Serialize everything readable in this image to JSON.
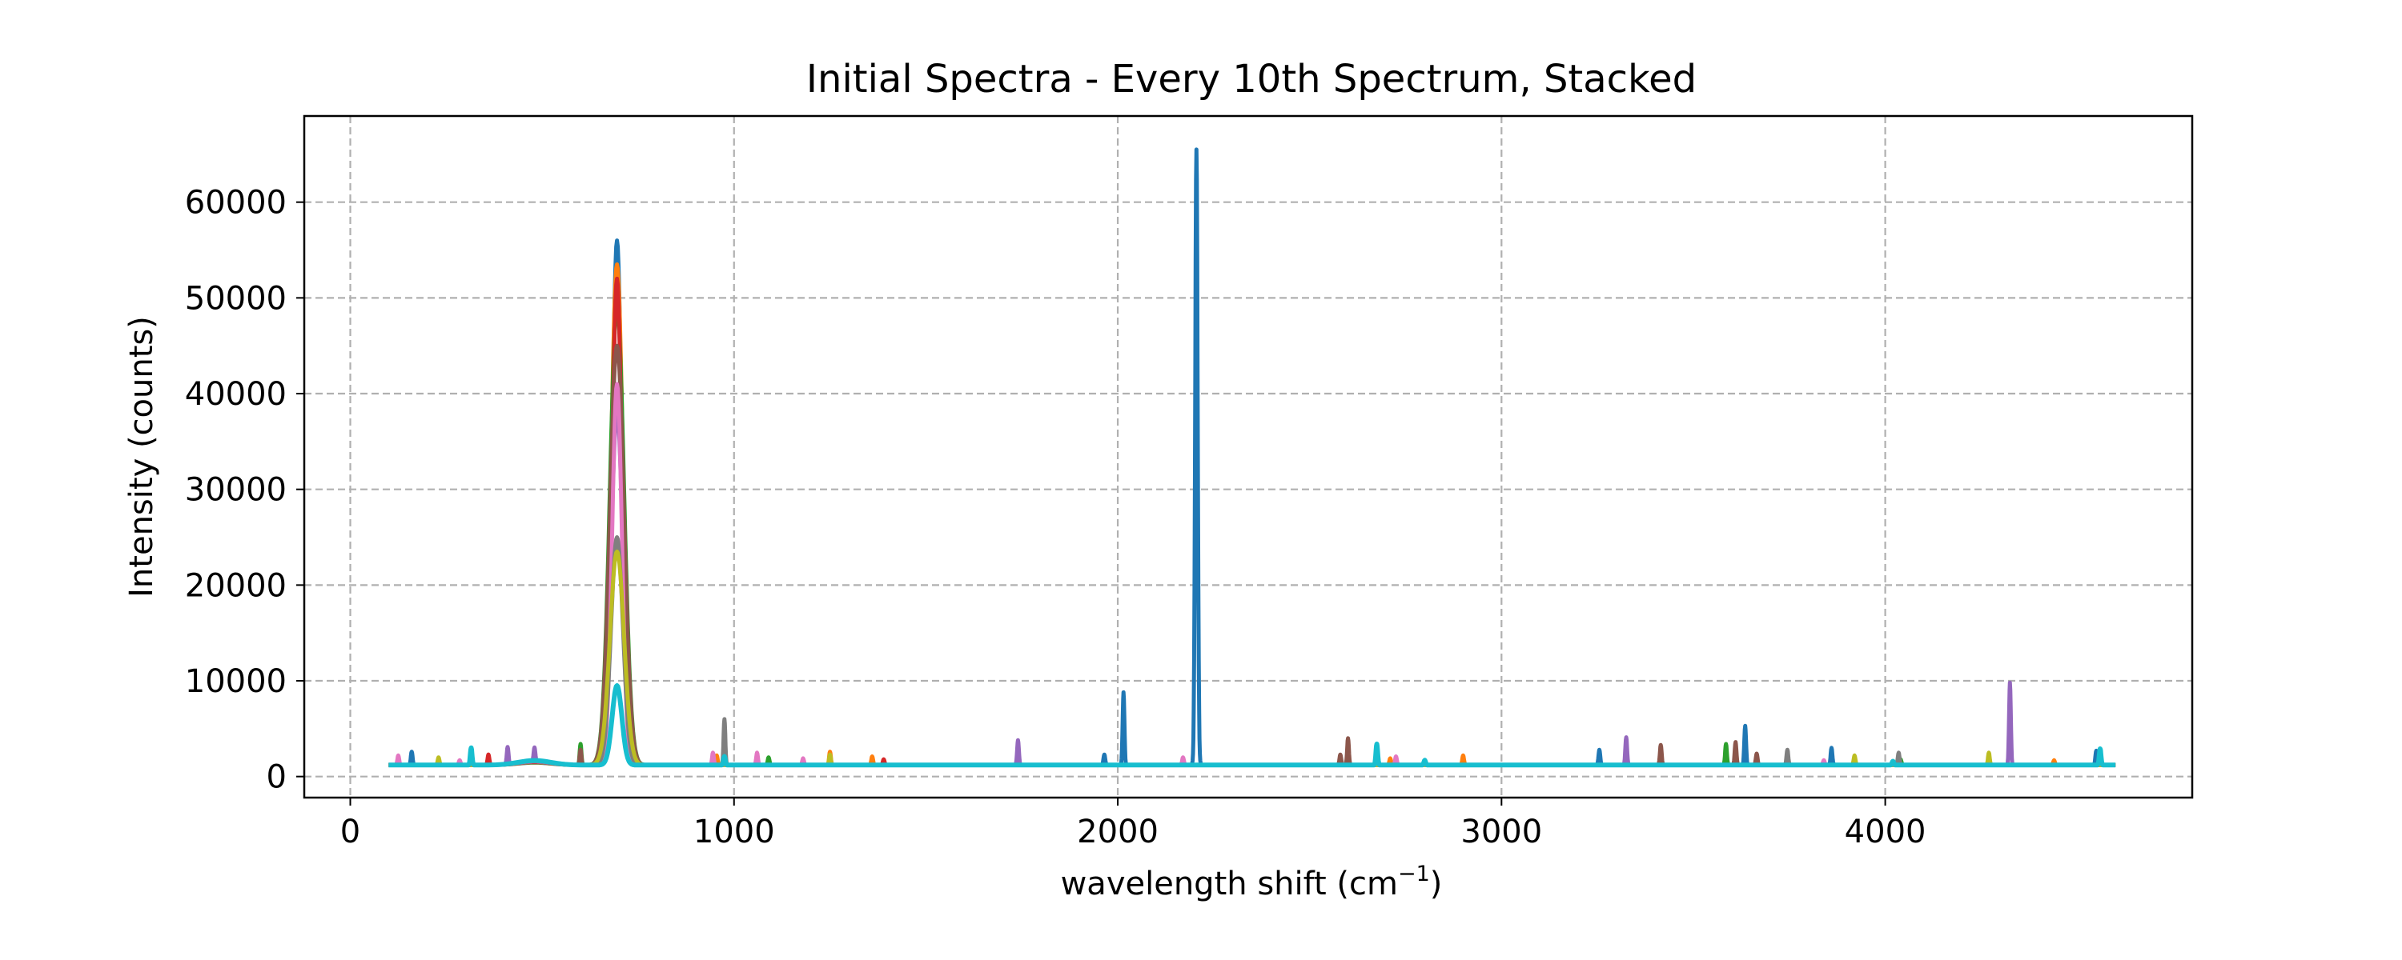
{
  "chart_data": {
    "type": "line",
    "title": "Initial Spectra - Every 10th Spectrum, Stacked",
    "xlabel": "wavelength shift (cm",
    "xlabel_sup": "−1",
    "xlabel_close": ")",
    "ylabel": "Intensity (counts)",
    "xlim": [
      -120,
      4800
    ],
    "ylim": [
      -2200,
      69000
    ],
    "x_ticks": [
      0,
      1000,
      2000,
      3000,
      4000
    ],
    "y_ticks": [
      0,
      10000,
      20000,
      30000,
      40000,
      50000,
      60000
    ],
    "grid": true,
    "legend": "none",
    "x_range": [
      100,
      4600
    ],
    "baseline": 1200,
    "main_peak": {
      "x": 695,
      "series_peak_heights": [
        56000,
        53500,
        49000,
        52000,
        38000,
        45000,
        41000,
        25000,
        23500,
        9500
      ]
    },
    "series": [
      {
        "color": "#1f77b4",
        "spikes": [
          [
            160,
            2600
          ],
          [
            1965,
            2300
          ],
          [
            2015,
            8800
          ],
          [
            2205,
            65500
          ],
          [
            3255,
            2800
          ],
          [
            3635,
            5300
          ],
          [
            3860,
            3000
          ],
          [
            4550,
            2700
          ]
        ]
      },
      {
        "color": "#ff7f0e",
        "spikes": [
          [
            955,
            2200
          ],
          [
            1250,
            2600
          ],
          [
            1360,
            2100
          ],
          [
            2710,
            1900
          ],
          [
            2900,
            2200
          ],
          [
            4440,
            1700
          ]
        ]
      },
      {
        "color": "#2ca02c",
        "spikes": [
          [
            600,
            3400
          ],
          [
            1090,
            2000
          ],
          [
            3585,
            3400
          ],
          [
            4040,
            1800
          ]
        ]
      },
      {
        "color": "#d62728",
        "spikes": [
          [
            360,
            2300
          ],
          [
            1390,
            1800
          ]
        ]
      },
      {
        "color": "#9467bd",
        "spikes": [
          [
            410,
            3000
          ],
          [
            480,
            2700
          ],
          [
            1740,
            3800
          ],
          [
            3325,
            4100
          ],
          [
            4325,
            9800
          ]
        ]
      },
      {
        "color": "#8c564b",
        "spikes": [
          [
            600,
            2800
          ],
          [
            2580,
            2300
          ],
          [
            2600,
            4000
          ],
          [
            3415,
            3300
          ],
          [
            3610,
            3600
          ],
          [
            3665,
            2400
          ]
        ]
      },
      {
        "color": "#e377c2",
        "spikes": [
          [
            125,
            2200
          ],
          [
            285,
            1700
          ],
          [
            945,
            2500
          ],
          [
            1060,
            2500
          ],
          [
            1180,
            1900
          ],
          [
            2170,
            2000
          ],
          [
            2725,
            2100
          ],
          [
            3840,
            1700
          ]
        ]
      },
      {
        "color": "#7f7f7f",
        "spikes": [
          [
            975,
            6000
          ],
          [
            3745,
            2800
          ],
          [
            4035,
            2500
          ]
        ]
      },
      {
        "color": "#bcbd22",
        "spikes": [
          [
            230,
            2000
          ],
          [
            1250,
            2300
          ],
          [
            3920,
            2200
          ],
          [
            4270,
            2500
          ]
        ]
      },
      {
        "color": "#17becf",
        "spikes": [
          [
            315,
            3000
          ],
          [
            975,
            2100
          ],
          [
            2675,
            3400
          ],
          [
            2800,
            1700
          ],
          [
            4020,
            1600
          ],
          [
            4560,
            2900
          ]
        ]
      }
    ]
  }
}
